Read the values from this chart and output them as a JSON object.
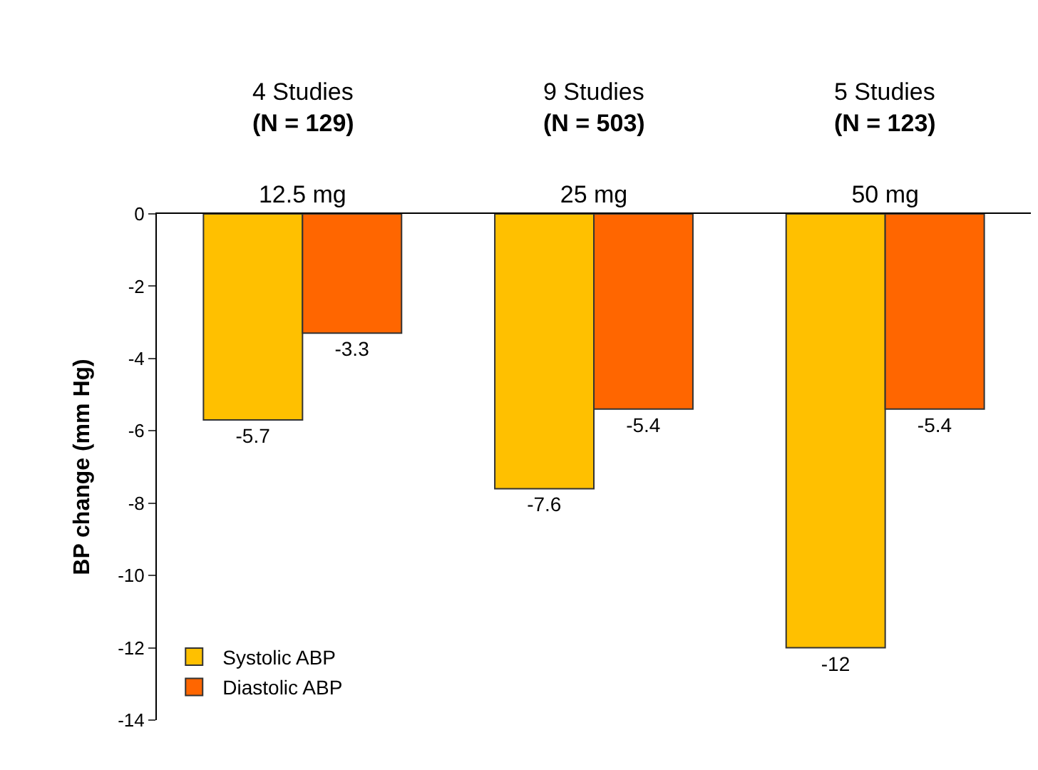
{
  "chart_data": {
    "type": "bar",
    "ylabel": "BP change (mm Hg)",
    "categories": [
      "12.5 mg",
      "25 mg",
      "50 mg"
    ],
    "series": [
      {
        "name": "Systolic ABP",
        "color": "#ffc000",
        "values": [
          -5.7,
          -7.6,
          -12
        ]
      },
      {
        "name": "Diastolic ABP",
        "color": "#ff6600",
        "values": [
          -3.3,
          -5.4,
          -5.4
        ]
      }
    ],
    "ylim": [
      -14,
      0
    ],
    "yticks": [
      0,
      -2,
      -4,
      -6,
      -8,
      -10,
      -12,
      -14
    ],
    "data_labels": true,
    "legend": "bottom left",
    "annotations": [
      "4 Studies\n(N = 129)",
      "9 Studies\n(N = 503)",
      "5 Studies\n(N = 123)"
    ]
  }
}
